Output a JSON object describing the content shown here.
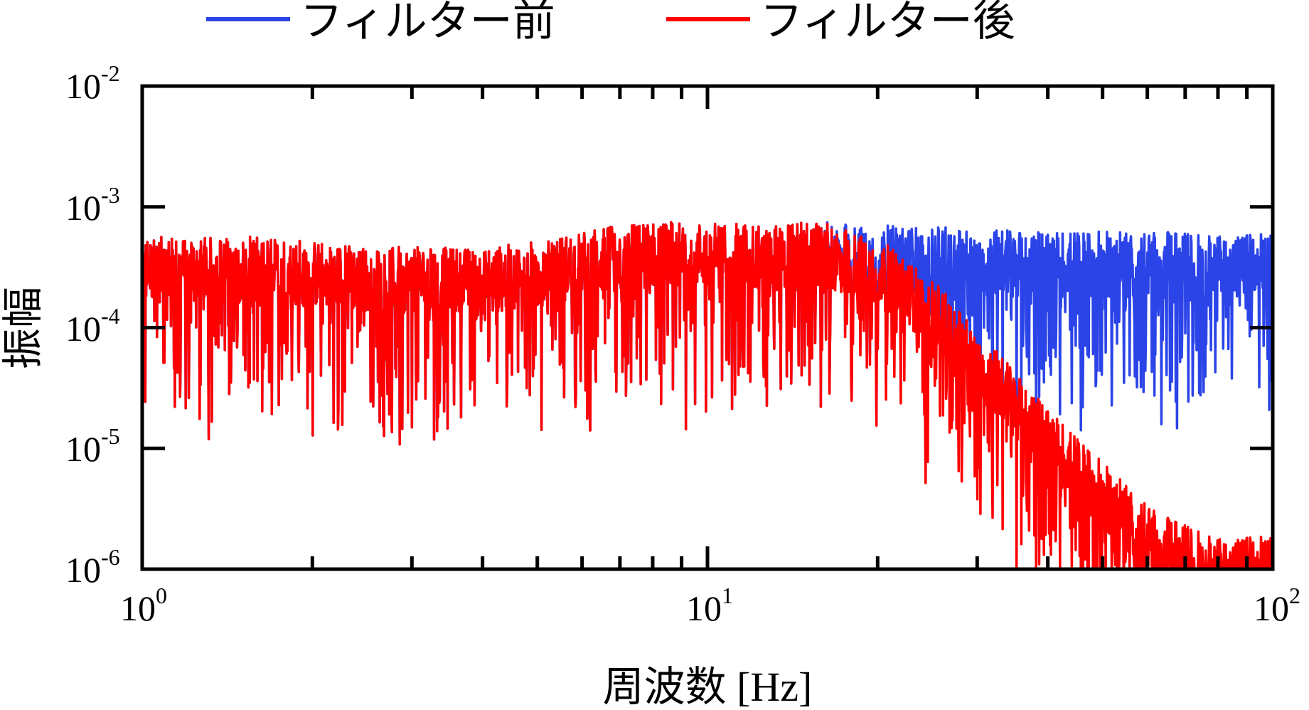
{
  "chart_data": {
    "type": "line",
    "title": "",
    "xlabel": "周波数 [Hz]",
    "ylabel": "振幅",
    "x_scale": "log",
    "y_scale": "log",
    "xlim": [
      1,
      100
    ],
    "ylim": [
      1e-06,
      0.01
    ],
    "grid": false,
    "legend_position": "top-center",
    "x_ticks": [
      {
        "value": 1,
        "base": "10",
        "exp": "0"
      },
      {
        "value": 10,
        "base": "10",
        "exp": "1"
      },
      {
        "value": 100,
        "base": "10",
        "exp": "2"
      }
    ],
    "y_ticks": [
      {
        "value": 0.01,
        "base": "10",
        "exp": "-2"
      },
      {
        "value": 0.001,
        "base": "10",
        "exp": "-3"
      },
      {
        "value": 0.0001,
        "base": "10",
        "exp": "-4"
      },
      {
        "value": 1e-05,
        "base": "10",
        "exp": "-5"
      },
      {
        "value": 1e-06,
        "base": "10",
        "exp": "-6"
      }
    ],
    "series": [
      {
        "name": "フィルター前",
        "color": "#2b44e8",
        "x": [
          1,
          1.26,
          1.58,
          2,
          2.51,
          3.16,
          3.98,
          5.01,
          6.31,
          7.94,
          10,
          12.6,
          15.8,
          20,
          25.1,
          31.6,
          39.8,
          50.1,
          63.1,
          79.4,
          100
        ],
        "y": [
          0.0003,
          0.0003,
          0.0003,
          0.00028,
          0.00025,
          0.00025,
          0.00024,
          0.00028,
          0.00035,
          0.0004,
          0.0004,
          0.00038,
          0.0004,
          0.00038,
          0.00036,
          0.00035,
          0.00034,
          0.00033,
          0.00033,
          0.00032,
          0.00032
        ]
      },
      {
        "name": "フィルター後",
        "color": "#ff0000",
        "x": [
          1,
          1.26,
          1.58,
          2,
          2.51,
          3.16,
          3.98,
          5.01,
          6.31,
          7.94,
          10,
          12.6,
          15.8,
          20,
          25.1,
          31.6,
          39.8,
          50.1,
          63.1,
          79.4,
          100
        ],
        "y": [
          0.0003,
          0.0003,
          0.0003,
          0.00028,
          0.00025,
          0.00025,
          0.00024,
          0.00028,
          0.00035,
          0.0004,
          0.0004,
          0.00038,
          0.0004,
          0.0003,
          0.00013,
          4e-05,
          1.2e-05,
          4e-06,
          1.5e-06,
          1e-06,
          1e-06
        ]
      }
    ]
  }
}
